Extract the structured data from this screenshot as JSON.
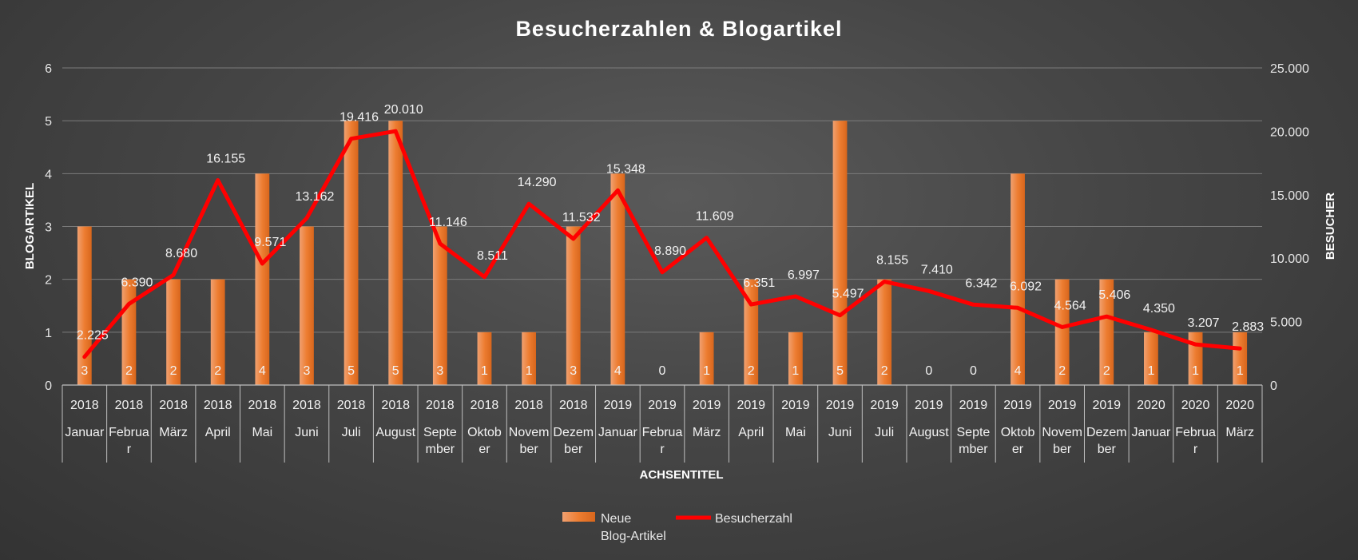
{
  "chart_data": {
    "type": "bar+line",
    "title": "Besucherzahlen & Blogartikel",
    "xlabel": "ACHSENTITEL",
    "ylabel_left": "BLOGARTIKEL",
    "ylabel_right": "BESUCHER",
    "ylim_left": [
      0,
      6
    ],
    "ylim_right": [
      0,
      25000
    ],
    "yticks_left": [
      "0",
      "1",
      "2",
      "3",
      "4",
      "5",
      "6"
    ],
    "yticks_right": [
      "0",
      "5.000",
      "10.000",
      "15.000",
      "20.000",
      "25.000"
    ],
    "grid": true,
    "legend_position": "bottom",
    "categories": [
      {
        "year": "2018",
        "month": [
          "Januar"
        ]
      },
      {
        "year": "2018",
        "month": [
          "Februa",
          "r"
        ]
      },
      {
        "year": "2018",
        "month": [
          "März"
        ]
      },
      {
        "year": "2018",
        "month": [
          "April"
        ]
      },
      {
        "year": "2018",
        "month": [
          "Mai"
        ]
      },
      {
        "year": "2018",
        "month": [
          "Juni"
        ]
      },
      {
        "year": "2018",
        "month": [
          "Juli"
        ]
      },
      {
        "year": "2018",
        "month": [
          "August"
        ]
      },
      {
        "year": "2018",
        "month": [
          "Septe",
          "mber"
        ]
      },
      {
        "year": "2018",
        "month": [
          "Oktob",
          "er"
        ]
      },
      {
        "year": "2018",
        "month": [
          "Novem",
          "ber"
        ]
      },
      {
        "year": "2018",
        "month": [
          "Dezem",
          "ber"
        ]
      },
      {
        "year": "2019",
        "month": [
          "Januar"
        ]
      },
      {
        "year": "2019",
        "month": [
          "Februa",
          "r"
        ]
      },
      {
        "year": "2019",
        "month": [
          "März"
        ]
      },
      {
        "year": "2019",
        "month": [
          "April"
        ]
      },
      {
        "year": "2019",
        "month": [
          "Mai"
        ]
      },
      {
        "year": "2019",
        "month": [
          "Juni"
        ]
      },
      {
        "year": "2019",
        "month": [
          "Juli"
        ]
      },
      {
        "year": "2019",
        "month": [
          "August"
        ]
      },
      {
        "year": "2019",
        "month": [
          "Septe",
          "mber"
        ]
      },
      {
        "year": "2019",
        "month": [
          "Oktob",
          "er"
        ]
      },
      {
        "year": "2019",
        "month": [
          "Novem",
          "ber"
        ]
      },
      {
        "year": "2019",
        "month": [
          "Dezem",
          "ber"
        ]
      },
      {
        "year": "2020",
        "month": [
          "Januar"
        ]
      },
      {
        "year": "2020",
        "month": [
          "Februa",
          "r"
        ]
      },
      {
        "year": "2020",
        "month": [
          "März"
        ]
      }
    ],
    "series": [
      {
        "name": "Neue Blog-Artikel",
        "legend_lines": [
          "Neue",
          "Blog-Artikel"
        ],
        "type": "bar",
        "axis": "left",
        "color": "#ed7d31",
        "values": [
          3,
          2,
          2,
          2,
          4,
          3,
          5,
          5,
          3,
          1,
          1,
          3,
          4,
          0,
          1,
          2,
          1,
          5,
          2,
          0,
          0,
          4,
          2,
          2,
          1,
          1,
          1
        ],
        "labels": [
          "3",
          "2",
          "2",
          "2",
          "4",
          "3",
          "5",
          "5",
          "3",
          "1",
          "1",
          "3",
          "4",
          "0",
          "1",
          "2",
          "1",
          "5",
          "2",
          "0",
          "0",
          "4",
          "2",
          "2",
          "1",
          "1",
          "1"
        ]
      },
      {
        "name": "Besucherzahl",
        "legend_lines": [
          "Besucherzahl"
        ],
        "type": "line",
        "axis": "right",
        "color": "#ff0000",
        "values": [
          2225,
          6390,
          8680,
          16155,
          9571,
          13162,
          19416,
          20010,
          11146,
          8511,
          14290,
          11532,
          15348,
          8890,
          11609,
          6351,
          6997,
          5497,
          8155,
          7410,
          6342,
          6092,
          4564,
          5406,
          4350,
          3207,
          2883
        ],
        "labels": [
          "2.225",
          "6.390",
          "8.680",
          "16.155",
          "9.571",
          "13.162",
          "19.416",
          "20.010",
          "11.146",
          "8.511",
          "14.290",
          "11.532",
          "15.348",
          "8.890",
          "11.609",
          "6.351",
          "6.997",
          "5.497",
          "8.155",
          "7.410",
          "6.342",
          "6.092",
          "4.564",
          "5.406",
          "4.350",
          "3.207",
          "2.883"
        ]
      }
    ]
  }
}
